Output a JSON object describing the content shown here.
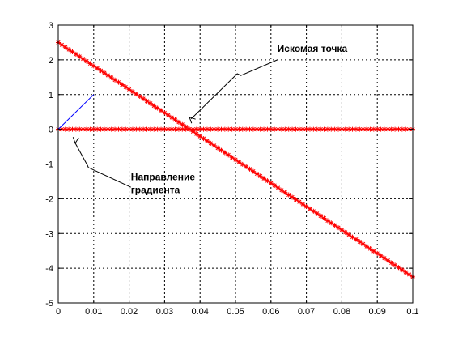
{
  "chart_data": {
    "type": "line",
    "title": "",
    "xlabel": "",
    "ylabel": "",
    "xlim": [
      0,
      0.1
    ],
    "ylim": [
      -5,
      3
    ],
    "grid": true,
    "x_ticks": [
      0,
      0.01,
      0.02,
      0.03,
      0.04,
      0.05,
      0.06,
      0.07,
      0.08,
      0.09,
      0.1
    ],
    "x_tick_labels": [
      "0",
      "0.01",
      "0.02",
      "0.03",
      "0.04",
      "0.05",
      "0.06",
      "0.07",
      "0.08",
      "0.09",
      "0.1"
    ],
    "y_ticks": [
      -5,
      -4,
      -3,
      -2,
      -1,
      0,
      1,
      2,
      3
    ],
    "y_tick_labels": [
      "-5",
      "-4",
      "-3",
      "-2",
      "-1",
      "0",
      "1",
      "2",
      "3"
    ],
    "series": [
      {
        "values_line": {
          "x": [
            0,
            0.1
          ],
          "y": [
            2.5,
            -4.25
          ]
        },
        "marker": "*",
        "color": "#ff0000",
        "point_count": 101
      },
      {
        "values_line": {
          "x": [
            0,
            0.1
          ],
          "y": [
            0,
            0
          ]
        },
        "marker": "*",
        "color": "#ff0000",
        "point_count": 101
      },
      {
        "values_line": {
          "x": [
            0,
            0.01
          ],
          "y": [
            0,
            1
          ]
        },
        "marker": "none",
        "color": "#0000ff"
      }
    ],
    "annotations": [
      {
        "lines": [
          "Искомая точка"
        ],
        "text_at": {
          "x": 0.0618,
          "y": 2.23
        },
        "arrow_points": [
          {
            "x": 0.0618,
            "y": 2.0
          },
          {
            "x": 0.0515,
            "y": 1.55
          },
          {
            "x": 0.0505,
            "y": 1.6
          },
          {
            "x": 0.0375,
            "y": 0.3
          }
        ],
        "arrow_tip": {
          "x": 0.037,
          "y": 0.35
        },
        "arrow_from": {
          "x": 0.0375,
          "y": 0.3
        }
      },
      {
        "lines": [
          "Направление",
          "градиента"
        ],
        "text_at": {
          "x": 0.0205,
          "y": -1.47
        },
        "arrow_points": [
          {
            "x": 0.0205,
            "y": -1.67
          },
          {
            "x": 0.0085,
            "y": -1.1
          },
          {
            "x": 0.0083,
            "y": -1.05
          },
          {
            "x": 0.0048,
            "y": -0.4
          }
        ],
        "arrow_tip": {
          "x": 0.0048,
          "y": -0.4
        },
        "arrow_from": {
          "x": 0.0051,
          "y": -0.1
        }
      }
    ]
  }
}
